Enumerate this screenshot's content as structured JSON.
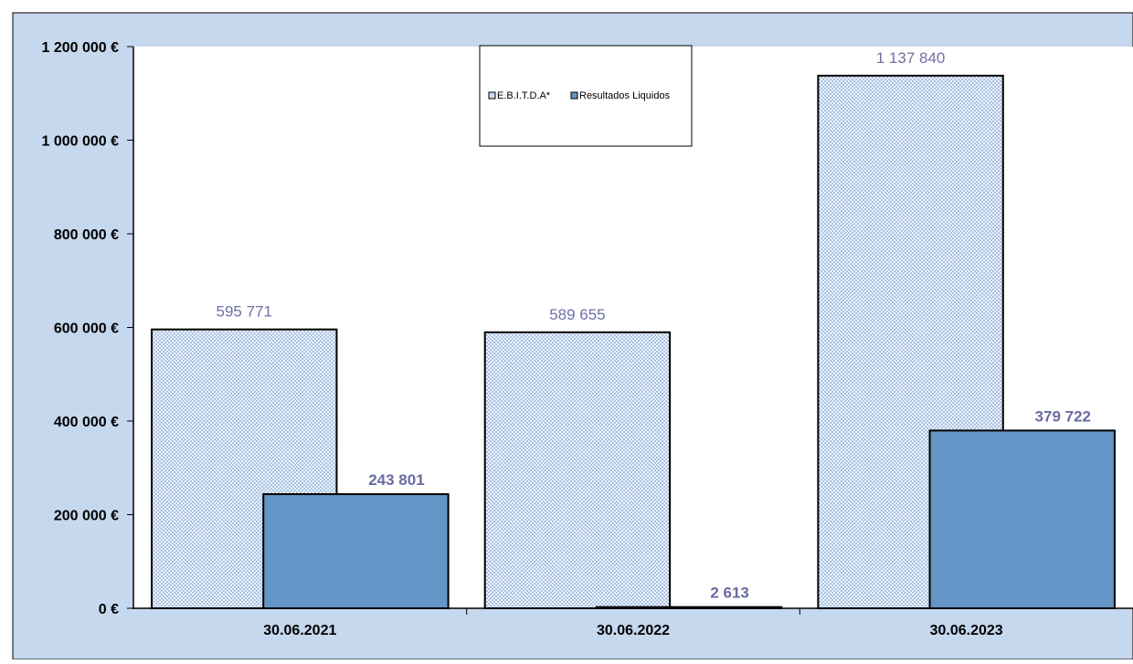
{
  "chart_data": {
    "type": "bar",
    "categories": [
      "30.06.2021",
      "30.06.2022",
      "30.06.2023"
    ],
    "series": [
      {
        "name": "E.B.I.T.D.A*",
        "values": [
          595771,
          589655,
          1137840
        ],
        "labels": [
          "595 771",
          "589 655",
          "1 137 840"
        ]
      },
      {
        "name": "Resultados Liquidos",
        "values": [
          243801,
          2613,
          379722
        ],
        "labels": [
          "243 801",
          "2 613",
          "379 722"
        ]
      }
    ],
    "ylim": [
      0,
      1200000
    ],
    "yticks": [
      0,
      200000,
      400000,
      600000,
      800000,
      1000000,
      1200000
    ],
    "ytick_labels": [
      "0 €",
      "200 000 €",
      "400 000 €",
      "600 000 €",
      "800 000 €",
      "1 000 000 €",
      "1 200 000 €"
    ],
    "legend_position": "top-center",
    "grid": false
  },
  "colors": {
    "outer_background": "#c6d8ee",
    "plot_background": "#ffffff",
    "series1_fill": "#b7cee8",
    "series2_fill": "#6396c6",
    "bar_outline": "#000000",
    "label_color": "#7070a8"
  }
}
